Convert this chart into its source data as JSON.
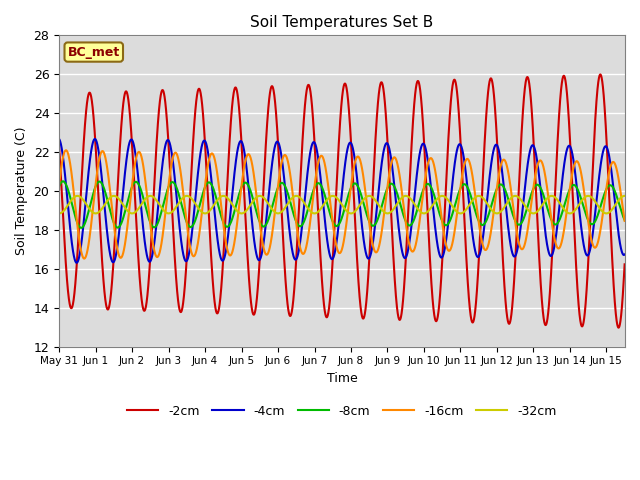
{
  "title": "Soil Temperatures Set B",
  "xlabel": "Time",
  "ylabel": "Soil Temperature (C)",
  "ylim": [
    12,
    28
  ],
  "xlim_days": [
    0,
    15.5
  ],
  "annotation": "BC_met",
  "background_color": "#dcdcdc",
  "series_colors": {
    "-2cm": "#cc0000",
    "-4cm": "#0000cc",
    "-8cm": "#00bb00",
    "-16cm": "#ff8800",
    "-32cm": "#cccc00"
  },
  "tick_labels": [
    "May 31",
    "Jun 1",
    "Jun 2",
    "Jun 3",
    "Jun 4",
    "Jun 5",
    "Jun 6",
    "Jun 7",
    "Jun 8",
    "Jun 9",
    "Jun 10",
    "Jun 11",
    "Jun 12",
    "Jun 13",
    "Jun 14",
    "Jun 15"
  ],
  "tick_positions": [
    0,
    1,
    2,
    3,
    4,
    5,
    6,
    7,
    8,
    9,
    10,
    11,
    12,
    13,
    14,
    15
  ],
  "legend_order": [
    "-2cm",
    "-4cm",
    "-8cm",
    "-16cm",
    "-32cm"
  ],
  "linewidth": 1.5,
  "yticks": [
    12,
    14,
    16,
    18,
    20,
    22,
    24,
    26,
    28
  ]
}
